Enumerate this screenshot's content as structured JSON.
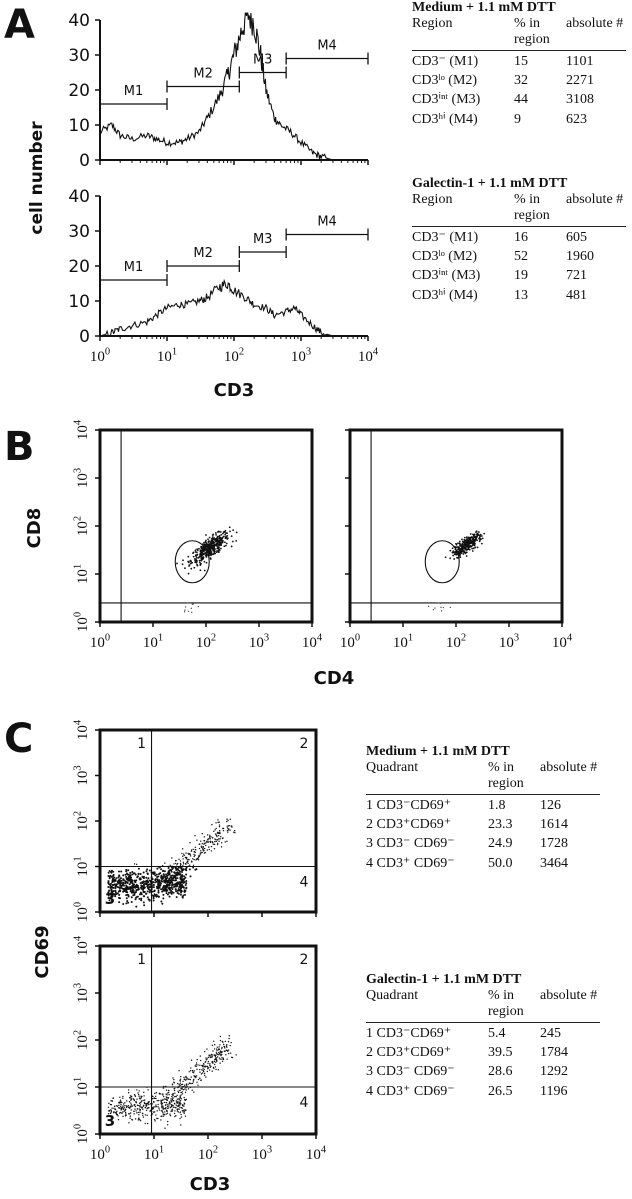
{
  "panels": {
    "a": "A",
    "b": "B",
    "c": "C"
  },
  "chart_data": [
    {
      "id": "A-histogram-medium",
      "type": "line",
      "panel": "A",
      "ylabel": "cell number",
      "xlabel": "CD3",
      "xscale": "log",
      "xlim": [
        1,
        10000
      ],
      "ylim": [
        0,
        40
      ],
      "yticks": [
        "0",
        "10",
        "20",
        "30",
        "40"
      ],
      "regions": [
        {
          "name": "M1",
          "from": 1,
          "to": 10,
          "level": 16
        },
        {
          "name": "M2",
          "from": 10,
          "to": 120,
          "level": 21
        },
        {
          "name": "M3",
          "from": 120,
          "to": 600,
          "level": 25
        },
        {
          "name": "M4",
          "from": 600,
          "to": 10000,
          "level": 29
        }
      ],
      "x": [
        1,
        1.5,
        2,
        3,
        5,
        7,
        10,
        15,
        20,
        30,
        40,
        60,
        80,
        100,
        130,
        160,
        200,
        250,
        300,
        400,
        500,
        700,
        1000,
        1500,
        2000,
        3000
      ],
      "y": [
        8,
        10,
        7,
        6,
        7,
        6,
        5,
        5,
        6,
        8,
        12,
        18,
        24,
        30,
        37,
        42,
        39,
        30,
        20,
        12,
        10,
        8,
        5,
        2,
        1,
        0
      ]
    },
    {
      "id": "A-histogram-galectin",
      "type": "line",
      "panel": "A",
      "xlabel": "CD3",
      "xscale": "log",
      "xlim": [
        1,
        10000
      ],
      "ylim": [
        0,
        40
      ],
      "yticks": [
        "0",
        "10",
        "20",
        "30",
        "40"
      ],
      "xticks": [
        "10^0",
        "10^1",
        "10^2",
        "10^3",
        "10^4"
      ],
      "regions": [
        {
          "name": "M1",
          "from": 1,
          "to": 10,
          "level": 16
        },
        {
          "name": "M2",
          "from": 10,
          "to": 120,
          "level": 20
        },
        {
          "name": "M3",
          "from": 120,
          "to": 600,
          "level": 24
        },
        {
          "name": "M4",
          "from": 600,
          "to": 10000,
          "level": 29
        }
      ],
      "x": [
        1,
        1.5,
        2,
        3,
        5,
        7,
        10,
        15,
        20,
        30,
        40,
        60,
        80,
        100,
        150,
        200,
        300,
        400,
        600,
        800,
        1000,
        1500,
        2000,
        3000
      ],
      "y": [
        0,
        1,
        2,
        3,
        4,
        6,
        8,
        9,
        9,
        10,
        11,
        14,
        15,
        13,
        11,
        9,
        8,
        6,
        7,
        8,
        6,
        3,
        1,
        0
      ]
    },
    {
      "id": "B-dotplot-left",
      "type": "scatter",
      "panel": "B",
      "xlabel": "CD4",
      "ylabel": "CD8",
      "xscale": "log",
      "yscale": "log",
      "xlim": [
        1,
        10000
      ],
      "ylim": [
        1,
        10000
      ],
      "gate_x": 2.5,
      "gate_y": 2.5,
      "ellipse_center": [
        55,
        18
      ],
      "cluster_center": [
        120,
        35
      ],
      "cluster_spread": 0.18,
      "n_points": 420
    },
    {
      "id": "B-dotplot-right",
      "type": "scatter",
      "panel": "B",
      "xlabel": "CD4",
      "xscale": "log",
      "yscale": "log",
      "xlim": [
        1,
        10000
      ],
      "ylim": [
        1,
        10000
      ],
      "gate_x": 2.5,
      "gate_y": 2.5,
      "ellipse_center": [
        55,
        18
      ],
      "cluster_center": [
        160,
        40
      ],
      "cluster_spread": 0.14,
      "n_points": 320
    },
    {
      "id": "C-dotplot-medium",
      "type": "scatter",
      "panel": "C",
      "ylabel": "CD69",
      "xscale": "log",
      "yscale": "log",
      "xlim": [
        1,
        10000
      ],
      "ylim": [
        1,
        10000
      ],
      "quad_x": 9,
      "quad_y": 10,
      "quadrant_labels": [
        "1",
        "2",
        "3",
        "4"
      ],
      "n_points": 900
    },
    {
      "id": "C-dotplot-galectin",
      "type": "scatter",
      "panel": "C",
      "xlabel": "CD3",
      "xscale": "log",
      "yscale": "log",
      "xlim": [
        1,
        10000
      ],
      "ylim": [
        1,
        10000
      ],
      "quad_x": 9,
      "quad_y": 10,
      "quadrant_labels": [
        "1",
        "2",
        "3",
        "4"
      ],
      "n_points": 700
    }
  ],
  "tables": {
    "a_medium": {
      "title": "Medium + 1.1 mM DTT",
      "headers": [
        "Region",
        "% in region",
        "absolute #"
      ],
      "rows": [
        [
          "CD3⁻ (M1)",
          "15",
          "1101"
        ],
        [
          "CD3ˡᵒ (M2)",
          "32",
          "2271"
        ],
        [
          "CD3ⁱⁿᵗ (M3)",
          "44",
          "3108"
        ],
        [
          "CD3ʰⁱ (M4)",
          "9",
          "623"
        ]
      ]
    },
    "a_galectin": {
      "title": "Galectin-1 + 1.1 mM DTT",
      "headers": [
        "Region",
        "% in region",
        "absolute #"
      ],
      "rows": [
        [
          "CD3⁻ (M1)",
          "16",
          "605"
        ],
        [
          "CD3ˡᵒ (M2)",
          "52",
          "1960"
        ],
        [
          "CD3ⁱⁿᵗ (M3)",
          "19",
          "721"
        ],
        [
          "CD3ʰⁱ (M4)",
          "13",
          "481"
        ]
      ]
    },
    "c_medium": {
      "title": "Medium + 1.1 mM DTT",
      "headers": [
        "Quadrant",
        "% in region",
        "absolute #"
      ],
      "rows": [
        [
          "1  CD3⁻CD69⁺",
          "1.8",
          "126"
        ],
        [
          "2  CD3⁺CD69⁺",
          "23.3",
          "1614"
        ],
        [
          "3  CD3⁻ CD69⁻",
          "24.9",
          "1728"
        ],
        [
          "4  CD3⁺ CD69⁻",
          "50.0",
          "3464"
        ]
      ]
    },
    "c_galectin": {
      "title": "Galectin-1 + 1.1 mM DTT",
      "headers": [
        "Quadrant",
        "% in region",
        "absolute #"
      ],
      "rows": [
        [
          "1  CD3⁻CD69⁺",
          "5.4",
          "245"
        ],
        [
          "2  CD3⁺CD69⁺",
          "39.5",
          "1784"
        ],
        [
          "3  CD3⁻ CD69⁻",
          "28.6",
          "1292"
        ],
        [
          "4  CD3⁺ CD69⁻",
          "26.5",
          "1196"
        ]
      ]
    }
  }
}
